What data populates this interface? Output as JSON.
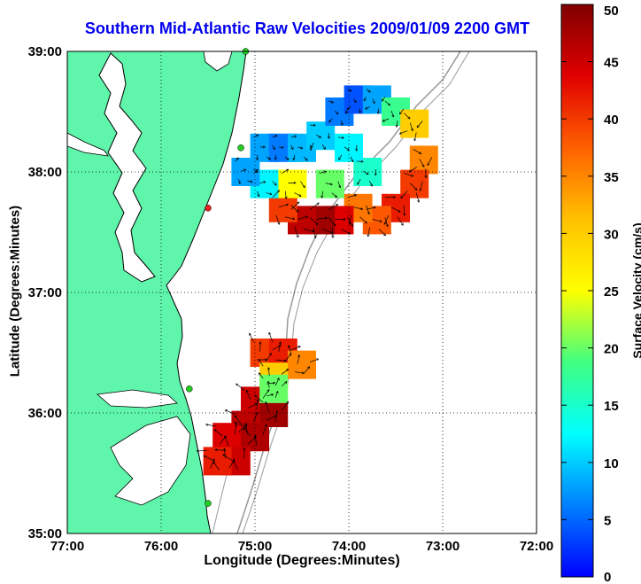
{
  "title": "Southern Mid-Atlantic Raw Velocities 2009/01/09 2200 GMT",
  "xlabel": "Longitude (Degrees:Minutes)",
  "ylabel": "Latitude (Degrees:Minutes)",
  "colorbar_label": "Surface Velocity (cm/s)",
  "x_ticks": [
    "77:00",
    "76:00",
    "75:00",
    "74:00",
    "73:00",
    "72:00"
  ],
  "y_ticks": [
    "39:00",
    "38:00",
    "37:00",
    "36:00",
    "35:00"
  ],
  "colorbar_ticks": [
    "50",
    "45",
    "40",
    "35",
    "30",
    "25",
    "20",
    "15",
    "10",
    "5",
    "0"
  ],
  "colors": {
    "land": "#5ff5aa",
    "water": "#ffffff",
    "bathymetry": "#999999",
    "station_active": "#22cc22",
    "station_inactive": "#ee2222",
    "title": "#0000ee"
  },
  "chart_data": {
    "type": "heatmap",
    "title": "Southern Mid-Atlantic Raw Velocities 2009/01/09 2200 GMT",
    "xlabel": "Longitude (Degrees:Minutes)",
    "ylabel": "Latitude (Degrees:Minutes)",
    "xlim": [
      -77,
      -72
    ],
    "ylim": [
      35,
      39
    ],
    "colorbar": {
      "label": "Surface Velocity (cm/s)",
      "range": [
        0,
        50
      ],
      "colormap": "jet"
    },
    "grid": true,
    "regions": [
      {
        "cells": [
          [
            -74.9,
            38.2,
            8
          ],
          [
            -74.7,
            38.2,
            6
          ],
          [
            -74.5,
            38.2,
            9
          ],
          [
            -74.3,
            38.3,
            10
          ],
          [
            -74.1,
            38.5,
            6
          ],
          [
            -73.9,
            38.6,
            4
          ],
          [
            -73.7,
            38.6,
            8
          ],
          [
            -73.5,
            38.5,
            18
          ],
          [
            -73.3,
            38.4,
            30
          ],
          [
            -73.2,
            38.1,
            35
          ],
          [
            -73.3,
            37.9,
            40
          ],
          [
            -73.5,
            37.7,
            42
          ],
          [
            -73.7,
            37.6,
            38
          ],
          [
            -73.9,
            37.7,
            36
          ],
          [
            -74.1,
            37.6,
            44
          ],
          [
            -74.3,
            37.6,
            48
          ],
          [
            -74.5,
            37.6,
            46
          ],
          [
            -74.7,
            37.7,
            40
          ],
          [
            -74.9,
            37.9,
            12
          ],
          [
            -75.1,
            38.0,
            8
          ],
          [
            -74.6,
            37.9,
            25
          ],
          [
            -74.2,
            37.9,
            20
          ],
          [
            -73.8,
            38.0,
            15
          ],
          [
            -74.0,
            38.2,
            12
          ]
        ]
      },
      {
        "cells": [
          [
            -74.9,
            36.5,
            40
          ],
          [
            -74.7,
            36.5,
            42
          ],
          [
            -74.5,
            36.4,
            35
          ],
          [
            -74.8,
            36.3,
            30
          ],
          [
            -75.0,
            36.1,
            45
          ],
          [
            -74.8,
            36.0,
            48
          ],
          [
            -75.1,
            35.9,
            46
          ],
          [
            -75.3,
            35.8,
            44
          ],
          [
            -75.0,
            35.8,
            47
          ],
          [
            -75.2,
            35.6,
            45
          ],
          [
            -75.4,
            35.6,
            42
          ],
          [
            -74.8,
            36.2,
            20
          ]
        ]
      }
    ],
    "stations": [
      {
        "lon": -75.1,
        "lat": 39.0,
        "status": "active"
      },
      {
        "lon": -75.15,
        "lat": 38.2,
        "status": "active"
      },
      {
        "lon": -75.5,
        "lat": 37.7,
        "status": "inactive"
      },
      {
        "lon": -75.7,
        "lat": 36.2,
        "status": "active"
      },
      {
        "lon": -75.5,
        "lat": 35.25,
        "status": "active"
      }
    ]
  }
}
